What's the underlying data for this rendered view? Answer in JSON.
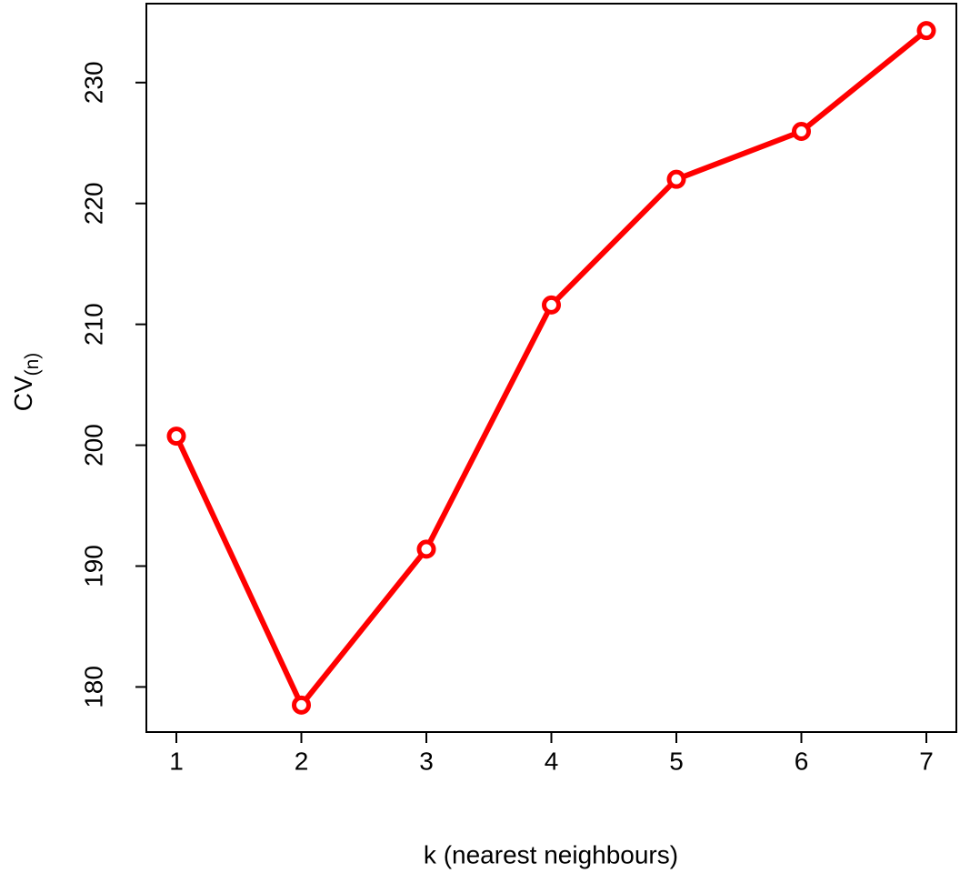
{
  "chart_data": {
    "type": "line",
    "x_label": "k (nearest neighbours)",
    "y_label": {
      "main": "CV",
      "subscript": "(n)"
    },
    "x": [
      1,
      2,
      3,
      4,
      5,
      6,
      7
    ],
    "series": [
      {
        "color": "#ff0000",
        "values": [
          200.75,
          178.5,
          191.4,
          211.6,
          222.0,
          225.96,
          234.3
        ]
      }
    ],
    "xlim": [
      0.76,
      7.24
    ],
    "xticks": [
      1,
      2,
      3,
      4,
      5,
      6,
      7
    ],
    "ylim": [
      176.27,
      236.53
    ],
    "yticks": [
      180,
      190,
      200,
      210,
      220,
      230
    ],
    "markers": true
  }
}
